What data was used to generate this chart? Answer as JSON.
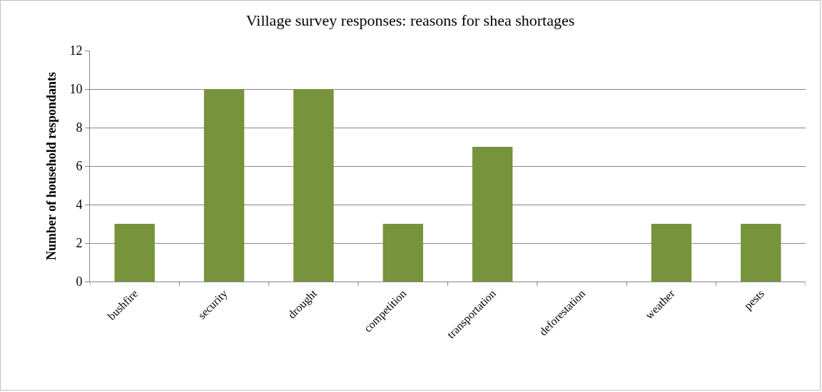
{
  "chart_data": {
    "type": "bar",
    "title": "Village survey responses: reasons for shea shortages",
    "ylabel": "Number of household respondants",
    "categories": [
      "bushfire",
      "security",
      "drought",
      "competition",
      "transportation",
      "deforestation",
      "weather",
      "pests"
    ],
    "values": [
      3,
      10,
      10,
      3,
      7,
      0,
      3,
      3
    ],
    "color": "#77933c",
    "ylim": [
      0,
      12
    ],
    "yticks": [
      0,
      2,
      4,
      6,
      8,
      10,
      12
    ],
    "grid": "y",
    "legend": false
  }
}
